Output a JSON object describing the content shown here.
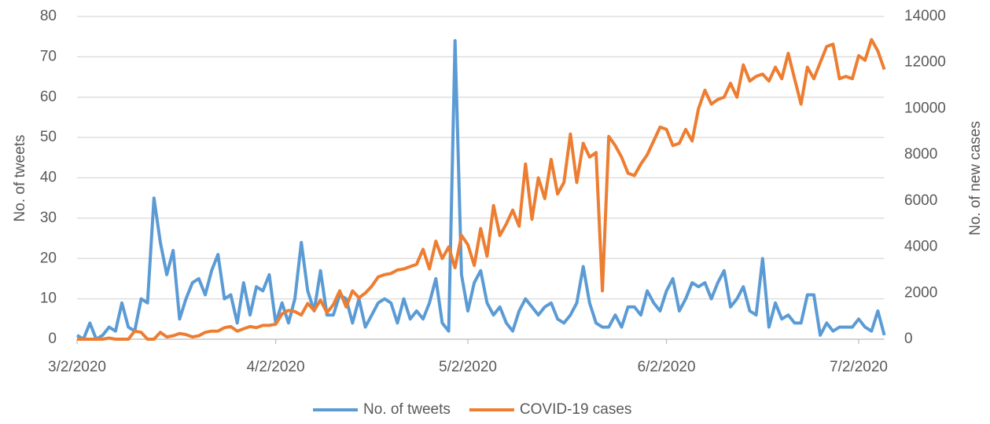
{
  "chart_data": {
    "type": "line",
    "x": [
      "3/2/2020",
      "3/3/2020",
      "3/4/2020",
      "3/5/2020",
      "3/6/2020",
      "3/7/2020",
      "3/8/2020",
      "3/9/2020",
      "3/10/2020",
      "3/11/2020",
      "3/12/2020",
      "3/13/2020",
      "3/14/2020",
      "3/15/2020",
      "3/16/2020",
      "3/17/2020",
      "3/18/2020",
      "3/19/2020",
      "3/20/2020",
      "3/21/2020",
      "3/22/2020",
      "3/23/2020",
      "3/24/2020",
      "3/25/2020",
      "3/26/2020",
      "3/27/2020",
      "3/28/2020",
      "3/29/2020",
      "3/30/2020",
      "3/31/2020",
      "4/1/2020",
      "4/2/2020",
      "4/3/2020",
      "4/4/2020",
      "4/5/2020",
      "4/6/2020",
      "4/7/2020",
      "4/8/2020",
      "4/9/2020",
      "4/10/2020",
      "4/11/2020",
      "4/12/2020",
      "4/13/2020",
      "4/14/2020",
      "4/15/2020",
      "4/16/2020",
      "4/17/2020",
      "4/18/2020",
      "4/19/2020",
      "4/20/2020",
      "4/21/2020",
      "4/22/2020",
      "4/23/2020",
      "4/24/2020",
      "4/25/2020",
      "4/26/2020",
      "4/27/2020",
      "4/28/2020",
      "4/29/2020",
      "4/30/2020",
      "5/1/2020",
      "5/2/2020",
      "5/3/2020",
      "5/4/2020",
      "5/5/2020",
      "5/6/2020",
      "5/7/2020",
      "5/8/2020",
      "5/9/2020",
      "5/10/2020",
      "5/11/2020",
      "5/12/2020",
      "5/13/2020",
      "5/14/2020",
      "5/15/2020",
      "5/16/2020",
      "5/17/2020",
      "5/18/2020",
      "5/19/2020",
      "5/20/2020",
      "5/21/2020",
      "5/22/2020",
      "5/23/2020",
      "5/24/2020",
      "5/25/2020",
      "5/26/2020",
      "5/27/2020",
      "5/28/2020",
      "5/29/2020",
      "5/30/2020",
      "5/31/2020",
      "6/1/2020",
      "6/2/2020",
      "6/3/2020",
      "6/4/2020",
      "6/5/2020",
      "6/6/2020",
      "6/7/2020",
      "6/8/2020",
      "6/9/2020",
      "6/10/2020",
      "6/11/2020",
      "6/12/2020",
      "6/13/2020",
      "6/14/2020",
      "6/15/2020",
      "6/16/2020",
      "6/17/2020",
      "6/18/2020",
      "6/19/2020",
      "6/20/2020",
      "6/21/2020",
      "6/22/2020",
      "6/23/2020",
      "6/24/2020",
      "6/25/2020",
      "6/26/2020",
      "6/27/2020",
      "6/28/2020",
      "6/29/2020",
      "6/30/2020",
      "7/1/2020",
      "7/2/2020",
      "7/3/2020",
      "7/4/2020",
      "7/5/2020",
      "7/6/2020"
    ],
    "xticks": [
      "3/2/2020",
      "4/2/2020",
      "5/2/2020",
      "6/2/2020",
      "7/2/2020"
    ],
    "ylabel": "No. of tweets",
    "y2label": "No. of new cases",
    "ylim": [
      0,
      80
    ],
    "yticks": [
      0,
      10,
      20,
      30,
      40,
      50,
      60,
      70,
      80
    ],
    "y2lim": [
      0,
      14000
    ],
    "y2ticks": [
      0,
      2000,
      4000,
      6000,
      8000,
      10000,
      12000,
      14000
    ],
    "grid": true,
    "legend": "bottom",
    "series": [
      {
        "name": "No. of tweets",
        "color": "#5b9bd5",
        "values": [
          1,
          0,
          4,
          0,
          1,
          3,
          2,
          9,
          3,
          2,
          10,
          9,
          35,
          24,
          16,
          22,
          5,
          10,
          14,
          15,
          11,
          17,
          21,
          10,
          11,
          4,
          14,
          6,
          13,
          12,
          16,
          4,
          9,
          4,
          10,
          24,
          12,
          7,
          17,
          6,
          6,
          11,
          10,
          4,
          10,
          3,
          6,
          9,
          10,
          9,
          4,
          10,
          5,
          7,
          5,
          9,
          15,
          4,
          2,
          74,
          16,
          7,
          14,
          17,
          9,
          6,
          8,
          4,
          2,
          7,
          10,
          8,
          6,
          8,
          9,
          5,
          4,
          6,
          9,
          18,
          9,
          4,
          3,
          3,
          6,
          3,
          8,
          8,
          6,
          12,
          9,
          7,
          12,
          15,
          7,
          10,
          14,
          13,
          14,
          10,
          14,
          17,
          8,
          10,
          13,
          7,
          6,
          20,
          3,
          9,
          5,
          6,
          4,
          4,
          11,
          11,
          1,
          4,
          2,
          3,
          3,
          3,
          5,
          3,
          2,
          7,
          1
        ]
      },
      {
        "name": "COVID-19 cases",
        "color": "#ed7d31",
        "axis": "y2",
        "values": [
          0,
          0,
          0,
          0,
          0,
          50,
          0,
          0,
          0,
          350,
          300,
          0,
          0,
          300,
          100,
          150,
          250,
          200,
          100,
          150,
          300,
          350,
          350,
          500,
          550,
          350,
          450,
          550,
          500,
          600,
          600,
          650,
          1100,
          1250,
          1200,
          1050,
          1550,
          1250,
          1700,
          1150,
          1500,
          2100,
          1400,
          2100,
          1800,
          2000,
          2300,
          2700,
          2800,
          2850,
          3000,
          3050,
          3150,
          3250,
          3900,
          3050,
          4250,
          3500,
          4000,
          3100,
          4500,
          4100,
          3200,
          4800,
          3600,
          5800,
          4500,
          5000,
          5600,
          4900,
          7600,
          5200,
          7000,
          6100,
          7800,
          6300,
          6800,
          8900,
          6800,
          8500,
          7900,
          8100,
          2100,
          8800,
          8400,
          7900,
          7200,
          7100,
          7600,
          8000,
          8600,
          9200,
          9100,
          8400,
          8500,
          9100,
          8600,
          10000,
          10800,
          10200,
          10400,
          10500,
          11100,
          10500,
          11900,
          11200,
          11400,
          11500,
          11200,
          11800,
          11300,
          12400,
          11300,
          10200,
          11800,
          11300,
          12000,
          12700,
          12800,
          11300,
          11400,
          11300,
          12300,
          12100,
          13000,
          12500,
          11700
        ]
      }
    ]
  }
}
